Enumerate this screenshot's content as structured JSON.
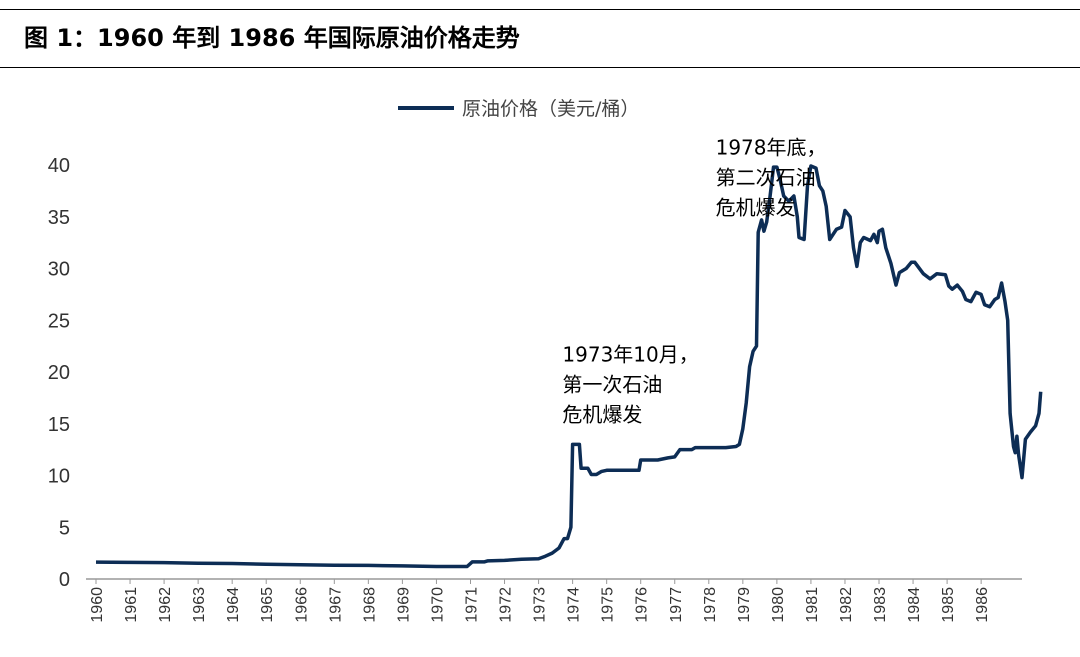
{
  "header": {
    "title": "图 1：1960 年到 1986 年国际原油价格走势"
  },
  "chart_data": {
    "type": "line",
    "title": "",
    "xlabel": "",
    "ylabel": "",
    "ylim": [
      0,
      40
    ],
    "y_ticks": [
      "0",
      "5",
      "10",
      "15",
      "20",
      "25",
      "30",
      "35",
      "40"
    ],
    "x_ticks": [
      "1960",
      "1961",
      "1962",
      "1963",
      "1964",
      "1965",
      "1966",
      "1967",
      "1968",
      "1969",
      "1970",
      "1971",
      "1972",
      "1973",
      "1974",
      "1975",
      "1976",
      "1977",
      "1978",
      "1979",
      "1980",
      "1981",
      "1982",
      "1983",
      "1984",
      "1985",
      "1986"
    ],
    "x_range": [
      1960,
      1987.2
    ],
    "legend": {
      "label": "原油价格（美元/桶）",
      "placement": "top-center"
    },
    "colors": {
      "line": "#0d2d55",
      "axis": "#999999"
    },
    "grid": false,
    "series": [
      {
        "name": "原油价格（美元/桶）",
        "points": [
          [
            1960.0,
            1.63
          ],
          [
            1961.0,
            1.6
          ],
          [
            1962.0,
            1.58
          ],
          [
            1963.0,
            1.53
          ],
          [
            1964.0,
            1.5
          ],
          [
            1965.0,
            1.43
          ],
          [
            1966.0,
            1.37
          ],
          [
            1967.0,
            1.33
          ],
          [
            1968.0,
            1.31
          ],
          [
            1969.0,
            1.27
          ],
          [
            1970.0,
            1.21
          ],
          [
            1970.9,
            1.21
          ],
          [
            1971.05,
            1.65
          ],
          [
            1971.4,
            1.65
          ],
          [
            1971.5,
            1.75
          ],
          [
            1972.0,
            1.8
          ],
          [
            1972.5,
            1.9
          ],
          [
            1973.0,
            1.95
          ],
          [
            1973.2,
            2.2
          ],
          [
            1973.4,
            2.5
          ],
          [
            1973.6,
            3.0
          ],
          [
            1973.75,
            3.9
          ],
          [
            1973.85,
            3.9
          ],
          [
            1973.95,
            5.0
          ],
          [
            1974.0,
            13.0
          ],
          [
            1974.2,
            13.0
          ],
          [
            1974.25,
            10.7
          ],
          [
            1974.45,
            10.7
          ],
          [
            1974.55,
            10.1
          ],
          [
            1974.7,
            10.1
          ],
          [
            1974.85,
            10.4
          ],
          [
            1975.0,
            10.5
          ],
          [
            1975.5,
            10.5
          ],
          [
            1975.95,
            10.5
          ],
          [
            1976.0,
            11.5
          ],
          [
            1976.5,
            11.5
          ],
          [
            1976.8,
            11.7
          ],
          [
            1977.0,
            11.8
          ],
          [
            1977.15,
            12.5
          ],
          [
            1977.5,
            12.5
          ],
          [
            1977.6,
            12.7
          ],
          [
            1978.0,
            12.7
          ],
          [
            1978.5,
            12.7
          ],
          [
            1978.8,
            12.8
          ],
          [
            1978.9,
            13.0
          ],
          [
            1979.0,
            14.5
          ],
          [
            1979.1,
            17.0
          ],
          [
            1979.2,
            20.5
          ],
          [
            1979.3,
            22.0
          ],
          [
            1979.4,
            22.5
          ],
          [
            1979.45,
            33.5
          ],
          [
            1979.55,
            34.7
          ],
          [
            1979.62,
            33.6
          ],
          [
            1979.7,
            34.5
          ],
          [
            1979.8,
            37.0
          ],
          [
            1979.9,
            39.8
          ],
          [
            1980.0,
            39.8
          ],
          [
            1980.1,
            38.5
          ],
          [
            1980.2,
            37.0
          ],
          [
            1980.35,
            36.5
          ],
          [
            1980.5,
            37.0
          ],
          [
            1980.6,
            35.0
          ],
          [
            1980.65,
            33.0
          ],
          [
            1980.8,
            32.8
          ],
          [
            1980.9,
            38.0
          ],
          [
            1981.0,
            39.9
          ],
          [
            1981.15,
            39.7
          ],
          [
            1981.25,
            38.0
          ],
          [
            1981.35,
            37.5
          ],
          [
            1981.45,
            36.0
          ],
          [
            1981.55,
            32.8
          ],
          [
            1981.75,
            33.8
          ],
          [
            1981.9,
            34.0
          ],
          [
            1982.0,
            35.6
          ],
          [
            1982.15,
            35.0
          ],
          [
            1982.25,
            32.0
          ],
          [
            1982.35,
            30.2
          ],
          [
            1982.45,
            32.5
          ],
          [
            1982.55,
            33.0
          ],
          [
            1982.75,
            32.7
          ],
          [
            1982.85,
            33.3
          ],
          [
            1982.95,
            32.5
          ],
          [
            1983.0,
            33.6
          ],
          [
            1983.1,
            33.8
          ],
          [
            1983.2,
            32.0
          ],
          [
            1983.35,
            30.5
          ],
          [
            1983.5,
            28.4
          ],
          [
            1983.6,
            29.6
          ],
          [
            1983.8,
            30.0
          ],
          [
            1983.95,
            30.6
          ],
          [
            1984.05,
            30.6
          ],
          [
            1984.3,
            29.5
          ],
          [
            1984.5,
            29.0
          ],
          [
            1984.7,
            29.5
          ],
          [
            1984.95,
            29.4
          ],
          [
            1985.05,
            28.3
          ],
          [
            1985.15,
            28.0
          ],
          [
            1985.3,
            28.4
          ],
          [
            1985.45,
            27.8
          ],
          [
            1985.55,
            27.0
          ],
          [
            1985.7,
            26.8
          ],
          [
            1985.85,
            27.7
          ],
          [
            1986.0,
            27.5
          ],
          [
            1986.1,
            26.5
          ],
          [
            1986.25,
            26.3
          ],
          [
            1986.4,
            27.0
          ],
          [
            1986.5,
            27.2
          ],
          [
            1986.6,
            28.6
          ],
          [
            1986.7,
            26.8
          ],
          [
            1986.78,
            25.0
          ],
          [
            1986.85,
            16.0
          ],
          [
            1986.95,
            12.8
          ],
          [
            1987.0,
            12.2
          ],
          [
            1987.05,
            13.8
          ],
          [
            1987.1,
            12.0
          ],
          [
            1987.2,
            9.8
          ],
          [
            1987.3,
            13.5
          ],
          [
            1987.45,
            14.2
          ],
          [
            1987.6,
            14.8
          ],
          [
            1987.7,
            16.0
          ],
          [
            1987.75,
            18.1
          ]
        ]
      }
    ],
    "annotations": [
      {
        "lines": [
          "1973年10月，",
          "第一次石油",
          "危机爆发"
        ],
        "x": 1973.7,
        "y": 21.0
      },
      {
        "lines": [
          "1978年底，",
          "第二次石油",
          "危机爆发"
        ],
        "x": 1978.2,
        "y": 41.0
      }
    ]
  }
}
